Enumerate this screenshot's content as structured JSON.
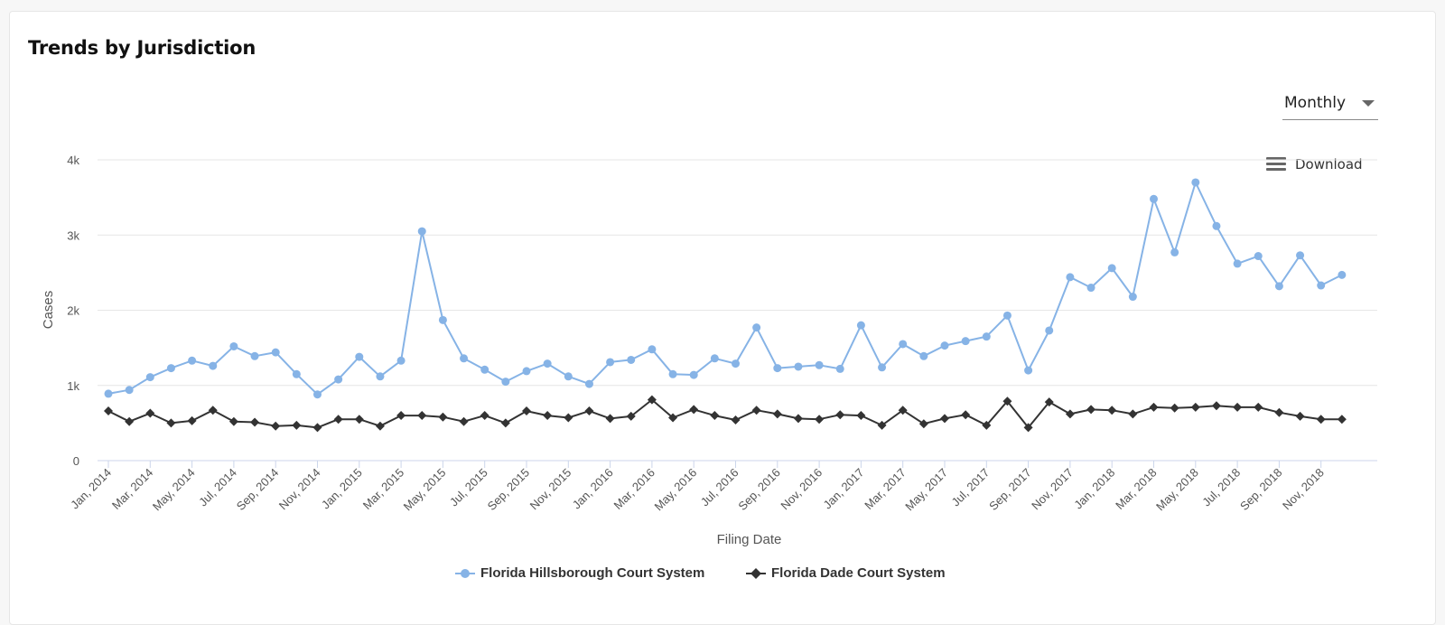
{
  "card": {
    "title": "Trends by Jurisdiction"
  },
  "controls": {
    "interval_selected": "Monthly",
    "download_label": "Download"
  },
  "colors": {
    "hillsborough": "#86b3e6",
    "dade": "#333333",
    "grid": "#e6e6e6",
    "axis": "#ccd6eb"
  },
  "chart_data": {
    "type": "line",
    "title": "Trends by Jurisdiction",
    "xlabel": "Filing Date",
    "ylabel": "Cases",
    "ylim": [
      0,
      4000
    ],
    "yticks": [
      0,
      1000,
      2000,
      3000,
      4000
    ],
    "ytick_labels": [
      "0",
      "1k",
      "2k",
      "3k",
      "4k"
    ],
    "x": [
      "Jan, 2014",
      "Feb, 2014",
      "Mar, 2014",
      "Apr, 2014",
      "May, 2014",
      "Jun, 2014",
      "Jul, 2014",
      "Aug, 2014",
      "Sep, 2014",
      "Oct, 2014",
      "Nov, 2014",
      "Dec, 2014",
      "Jan, 2015",
      "Feb, 2015",
      "Mar, 2015",
      "Apr, 2015",
      "May, 2015",
      "Jun, 2015",
      "Jul, 2015",
      "Aug, 2015",
      "Sep, 2015",
      "Oct, 2015",
      "Nov, 2015",
      "Dec, 2015",
      "Jan, 2016",
      "Feb, 2016",
      "Mar, 2016",
      "Apr, 2016",
      "May, 2016",
      "Jun, 2016",
      "Jul, 2016",
      "Aug, 2016",
      "Sep, 2016",
      "Oct, 2016",
      "Nov, 2016",
      "Dec, 2016",
      "Jan, 2017",
      "Feb, 2017",
      "Mar, 2017",
      "Apr, 2017",
      "May, 2017",
      "Jun, 2017",
      "Jul, 2017",
      "Aug, 2017",
      "Sep, 2017",
      "Oct, 2017",
      "Nov, 2017",
      "Dec, 2017",
      "Jan, 2018",
      "Feb, 2018",
      "Mar, 2018",
      "Apr, 2018",
      "May, 2018",
      "Jun, 2018",
      "Jul, 2018",
      "Aug, 2018",
      "Sep, 2018",
      "Oct, 2018",
      "Nov, 2018",
      "Dec, 2018"
    ],
    "x_tick_labels": [
      "Jan, 2014",
      "Mar, 2014",
      "May, 2014",
      "Jul, 2014",
      "Sep, 2014",
      "Nov, 2014",
      "Jan, 2015",
      "Mar, 2015",
      "May, 2015",
      "Jul, 2015",
      "Sep, 2015",
      "Nov, 2015",
      "Jan, 2016",
      "Mar, 2016",
      "May, 2016",
      "Jul, 2016",
      "Sep, 2016",
      "Nov, 2016",
      "Jan, 2017",
      "Mar, 2017",
      "May, 2017",
      "Jul, 2017",
      "Sep, 2017",
      "Nov, 2017",
      "Jan, 2018",
      "Mar, 2018",
      "May, 2018",
      "Jul, 2018",
      "Sep, 2018",
      "Nov, 2018"
    ],
    "series": [
      {
        "name": "Florida Hillsborough Court System",
        "marker": "circle",
        "values": [
          890,
          940,
          1110,
          1230,
          1330,
          1260,
          1520,
          1390,
          1440,
          1150,
          880,
          1080,
          1380,
          1120,
          1330,
          3050,
          1870,
          1360,
          1210,
          1050,
          1190,
          1290,
          1120,
          1020,
          1310,
          1340,
          1480,
          1150,
          1140,
          1360,
          1290,
          1770,
          1230,
          1250,
          1270,
          1220,
          1800,
          1240,
          1550,
          1390,
          1530,
          1590,
          1650,
          1930,
          1200,
          1730,
          2440,
          2300,
          2560,
          2180,
          3480,
          2770,
          3700,
          3120,
          2620,
          2720,
          2320,
          2730,
          2330,
          2470
        ]
      },
      {
        "name": "Florida Dade Court System",
        "marker": "diamond",
        "values": [
          660,
          520,
          630,
          500,
          530,
          670,
          520,
          510,
          460,
          470,
          440,
          550,
          550,
          460,
          600,
          600,
          580,
          520,
          600,
          500,
          660,
          600,
          570,
          660,
          560,
          590,
          810,
          570,
          680,
          600,
          540,
          670,
          620,
          560,
          550,
          610,
          600,
          470,
          670,
          490,
          560,
          610,
          470,
          790,
          440,
          780,
          620,
          680,
          670,
          620,
          710,
          700,
          710,
          730,
          710,
          710,
          640,
          590,
          550,
          550
        ]
      }
    ],
    "legend_position": "bottom-center",
    "grid": {
      "y": true,
      "x": false
    }
  }
}
